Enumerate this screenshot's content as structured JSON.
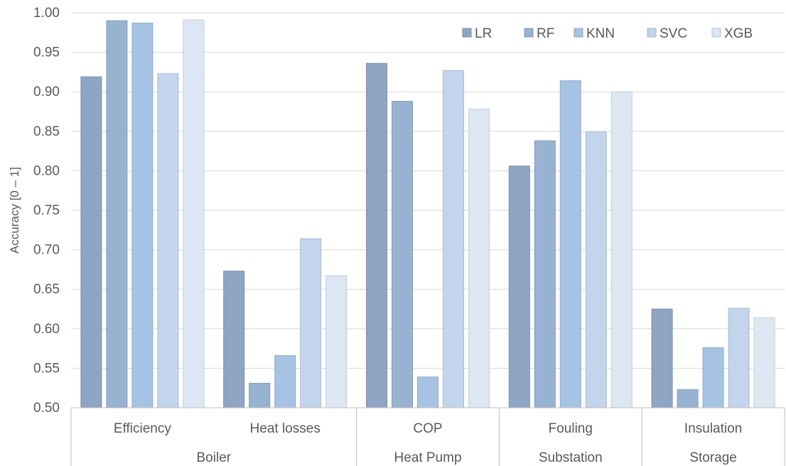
{
  "chart_data": {
    "type": "bar",
    "title": "",
    "ylabel": "Accuracy [0 – 1]",
    "ylim": [
      0.5,
      1.0
    ],
    "yticks": [
      "0.50",
      "0.55",
      "0.60",
      "0.65",
      "0.70",
      "0.75",
      "0.80",
      "0.85",
      "0.90",
      "0.95",
      "1.00"
    ],
    "grid": true,
    "legend_position": "top-right",
    "categories": [
      "Efficiency",
      "Heat losses",
      "COP",
      "Fouling",
      "Insulation"
    ],
    "groups": [
      {
        "label": "Boiler",
        "categories": [
          "Efficiency",
          "Heat losses"
        ]
      },
      {
        "label": "Heat Pump",
        "categories": [
          "COP"
        ]
      },
      {
        "label": "Substation",
        "categories": [
          "Fouling"
        ]
      },
      {
        "label": "Storage",
        "categories": [
          "Insulation"
        ]
      }
    ],
    "series": [
      {
        "name": "LR",
        "color": "#8ea5c3",
        "values": [
          0.919,
          0.673,
          0.936,
          0.806,
          0.625
        ]
      },
      {
        "name": "RF",
        "color": "#98b2d2",
        "values": [
          0.99,
          0.531,
          0.888,
          0.838,
          0.523
        ]
      },
      {
        "name": "KNN",
        "color": "#a6c3e4",
        "values": [
          0.987,
          0.566,
          0.539,
          0.914,
          0.576
        ]
      },
      {
        "name": "SVC",
        "color": "#c3d5ec",
        "values": [
          0.923,
          0.714,
          0.927,
          0.849,
          0.626
        ]
      },
      {
        "name": "XGB",
        "color": "#dde7f4",
        "values": [
          0.991,
          0.667,
          0.878,
          0.9,
          0.614
        ]
      }
    ]
  }
}
